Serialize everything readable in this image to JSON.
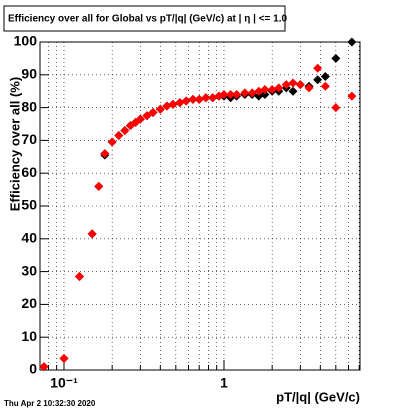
{
  "chart_data": {
    "type": "scatter",
    "title": "Efficiency over all for Global vs pT/|q| (GeV/c) at |  η | <= 1.0",
    "x_label": "pT/|q| (GeV/c)",
    "y_label": "Efficiency over all (%)",
    "footer": "Thu Apr  2 10:32:30 2020",
    "x_log": true,
    "grid": true,
    "xlim": [
      0.0708,
      7.08
    ],
    "ylim": [
      0,
      100
    ],
    "xticks": [
      {
        "value": 0.1,
        "label": "10⁻¹"
      },
      1
    ],
    "yticks": [
      0,
      10,
      20,
      30,
      40,
      50,
      60,
      70,
      80,
      90,
      100
    ],
    "series": [
      {
        "color": "#000000",
        "x": [
          0.075,
          0.1,
          0.125,
          0.15,
          0.165,
          0.18,
          0.2,
          0.22,
          0.24,
          0.26,
          0.28,
          0.3,
          0.33,
          0.36,
          0.4,
          0.44,
          0.48,
          0.53,
          0.58,
          0.64,
          0.7,
          0.77,
          0.85,
          0.93,
          1.0,
          1.1,
          1.2,
          1.35,
          1.5,
          1.65,
          1.8,
          2.0,
          2.2,
          2.45,
          2.7,
          3.0,
          3.4,
          3.85,
          4.3,
          5.0,
          6.3
        ],
        "values": [
          1,
          3.5,
          28.5,
          41.5,
          56,
          65.5,
          69.5,
          71.5,
          73,
          74.5,
          75.5,
          76.5,
          77.5,
          78.5,
          79.5,
          80.5,
          81,
          81.5,
          82,
          82.5,
          82.5,
          83,
          83,
          83.5,
          83.5,
          83,
          83.5,
          84,
          84,
          83.5,
          84,
          85,
          85,
          86,
          85,
          87,
          86.5,
          88.5,
          89.5,
          95,
          100
        ]
      },
      {
        "color": "#ff0000",
        "x": [
          0.075,
          0.1,
          0.125,
          0.15,
          0.165,
          0.18,
          0.2,
          0.22,
          0.24,
          0.26,
          0.28,
          0.3,
          0.33,
          0.36,
          0.4,
          0.44,
          0.48,
          0.53,
          0.58,
          0.64,
          0.7,
          0.77,
          0.85,
          0.93,
          1.0,
          1.1,
          1.2,
          1.35,
          1.5,
          1.65,
          1.8,
          2.0,
          2.2,
          2.45,
          2.7,
          3.0,
          3.4,
          3.85,
          4.3,
          5.0,
          6.3
        ],
        "values": [
          1,
          3.5,
          28.5,
          41.5,
          56,
          66,
          69.5,
          71.5,
          73,
          74.5,
          75.5,
          76.5,
          77.5,
          78.5,
          79.5,
          80.5,
          81,
          81.5,
          82,
          82.5,
          82.5,
          83,
          83,
          83.5,
          84,
          84,
          84,
          84.5,
          84.5,
          85,
          85.5,
          85.5,
          86,
          87,
          87.5,
          87,
          86,
          92,
          86.5,
          80,
          83.5
        ]
      }
    ]
  }
}
